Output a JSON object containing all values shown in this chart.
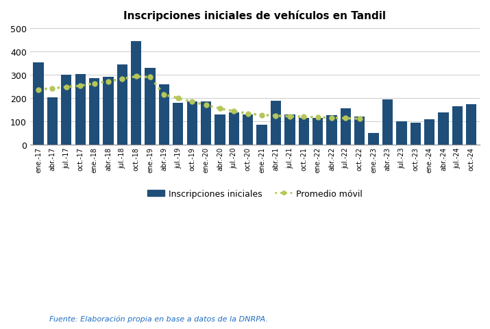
{
  "title": "Inscripciones iniciales de vehículos en Tandil",
  "bar_color": "#1F4E79",
  "ma_color": "#B5C65A",
  "source_text": "Fuente: Elaboración propia en base a datos de la DNRPA.",
  "source_color": "#1F6DBF",
  "labels": [
    "ene.-17",
    "abr.-17",
    "jul.-17",
    "oct.-17",
    "ene.-18",
    "abr.-18",
    "jul.-18",
    "oct.-18",
    "ene.-19",
    "abr.-19",
    "jul.-19",
    "oct.-19",
    "ene.-20",
    "abr.-20",
    "jul.-20",
    "oct.-20",
    "ene.-21",
    "abr.-21",
    "jul.-21",
    "oct.-21",
    "ene.-22",
    "abr.-22",
    "jul.-22",
    "oct.-22",
    "ene.-23",
    "abr.-23",
    "jul.-23",
    "oct.-23",
    "ene.-24",
    "abr.-24",
    "jul.-24",
    "oct.-24"
  ],
  "values": [
    352,
    203,
    300,
    302,
    285,
    290,
    345,
    445,
    330,
    260,
    180,
    185,
    185,
    130,
    140,
    130,
    85,
    188,
    130,
    115,
    115,
    128,
    155,
    120,
    50,
    195,
    100,
    95,
    110,
    140,
    165,
    175
  ],
  "ma_values": [
    237,
    242,
    248,
    253,
    263,
    272,
    283,
    293,
    290,
    215,
    200,
    185,
    170,
    156,
    144,
    134,
    128,
    125,
    122,
    120,
    118,
    116,
    114,
    112,
    null,
    null,
    null,
    null,
    null,
    null,
    null,
    null
  ],
  "ylim": [
    0,
    500
  ],
  "yticks": [
    0,
    100,
    200,
    300,
    400,
    500
  ],
  "title_fontsize": 11,
  "xtick_fontsize": 7,
  "ytick_fontsize": 9,
  "legend_fontsize": 9,
  "source_fontsize": 8
}
